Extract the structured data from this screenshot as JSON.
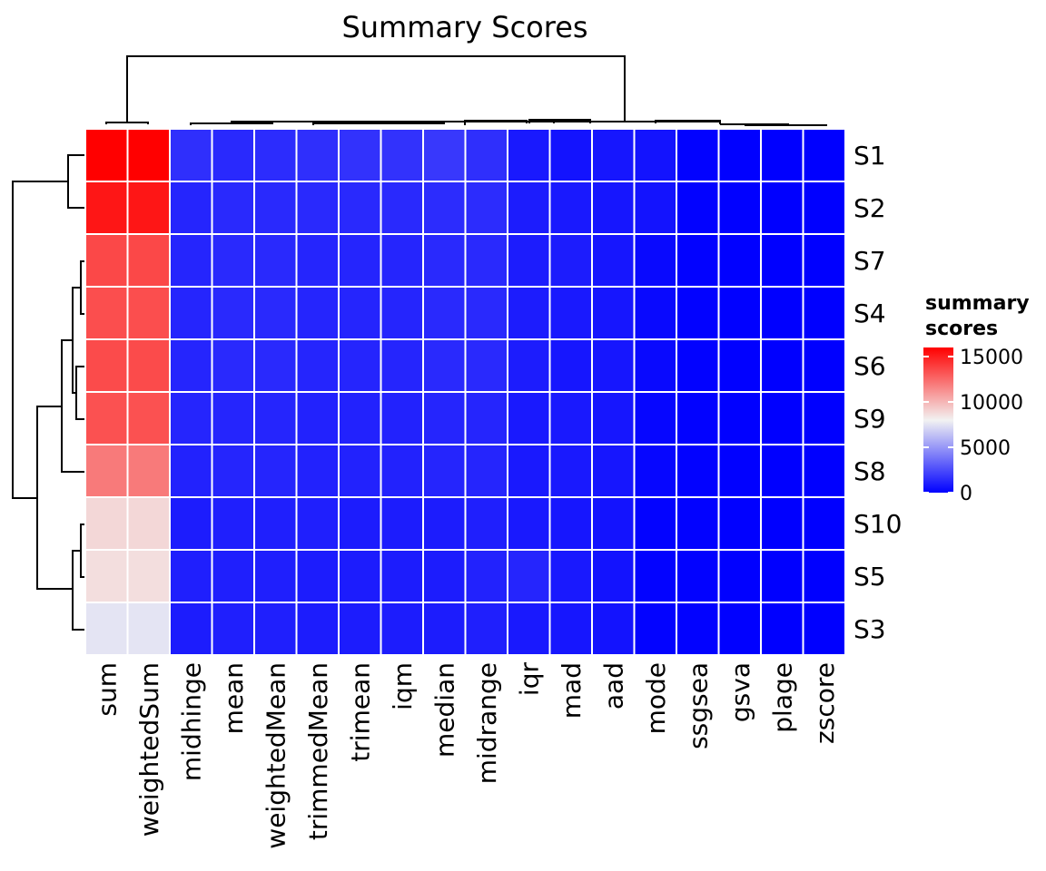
{
  "chart_data": {
    "type": "heatmap",
    "title": "Summary Scores",
    "columns": [
      "sum",
      "weightedSum",
      "midhinge",
      "mean",
      "weightedMean",
      "trimmedMean",
      "trimean",
      "iqm",
      "median",
      "midrange",
      "iqr",
      "mad",
      "aad",
      "mode",
      "ssgsea",
      "gsva",
      "plage",
      "zscore"
    ],
    "rows": [
      "S1",
      "S2",
      "S7",
      "S4",
      "S6",
      "S9",
      "S8",
      "S10",
      "S5",
      "S3"
    ],
    "values": [
      [
        15500,
        15500,
        1500,
        1300,
        1400,
        1500,
        1600,
        1600,
        1800,
        1500,
        800,
        600,
        700,
        600,
        50,
        20,
        10,
        0
      ],
      [
        14800,
        14800,
        1200,
        1300,
        1300,
        1300,
        1300,
        1300,
        1400,
        1400,
        900,
        800,
        700,
        600,
        50,
        20,
        10,
        0
      ],
      [
        13200,
        13200,
        1200,
        1300,
        1300,
        1200,
        1200,
        1200,
        1300,
        1300,
        900,
        900,
        700,
        300,
        50,
        20,
        10,
        0
      ],
      [
        13000,
        13000,
        1200,
        1300,
        1300,
        1200,
        1200,
        1200,
        1300,
        1300,
        900,
        800,
        700,
        300,
        50,
        20,
        10,
        0
      ],
      [
        13100,
        13100,
        1200,
        1300,
        1300,
        1200,
        1200,
        1200,
        1300,
        1300,
        900,
        700,
        700,
        300,
        50,
        20,
        10,
        0
      ],
      [
        12900,
        12900,
        1200,
        1200,
        1200,
        1100,
        1100,
        1100,
        1200,
        1200,
        800,
        800,
        700,
        200,
        50,
        20,
        10,
        0
      ],
      [
        11600,
        11600,
        1100,
        1200,
        1200,
        1100,
        1100,
        1100,
        1200,
        1200,
        800,
        800,
        700,
        200,
        50,
        20,
        10,
        0
      ],
      [
        8600,
        8600,
        900,
        1000,
        1000,
        1000,
        900,
        900,
        900,
        1000,
        800,
        700,
        600,
        100,
        50,
        20,
        10,
        0
      ],
      [
        8400,
        8400,
        1000,
        1000,
        1000,
        900,
        900,
        900,
        900,
        1100,
        1200,
        800,
        600,
        100,
        50,
        20,
        10,
        0
      ],
      [
        7300,
        7300,
        900,
        1000,
        1000,
        900,
        900,
        900,
        900,
        1000,
        800,
        700,
        600,
        100,
        50,
        20,
        10,
        0
      ]
    ],
    "row_dendrogram": true,
    "column_dendrogram": true,
    "legend": {
      "title_lines": [
        "summary",
        "scores"
      ],
      "ticks": [
        15000,
        10000,
        5000,
        0
      ],
      "range": [
        0,
        16000
      ],
      "placement": "right",
      "color_stops": [
        {
          "value": 0,
          "color": "#0000ff"
        },
        {
          "value": 7750,
          "color": "#f2f2f2"
        },
        {
          "value": 15500,
          "color": "#ff0000"
        }
      ]
    }
  }
}
